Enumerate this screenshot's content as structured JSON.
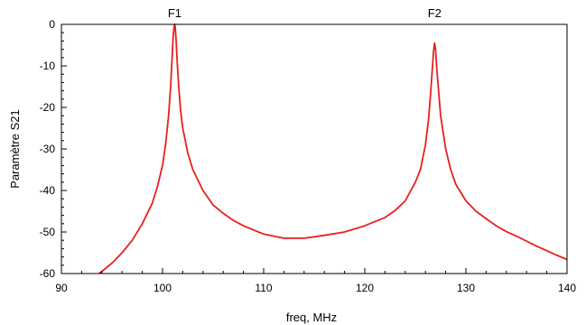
{
  "chart_data": {
    "type": "line",
    "title": "",
    "xlabel": "freq, MHz",
    "ylabel": "Paramètre S21",
    "xlim": [
      90,
      140
    ],
    "ylim": [
      -60,
      0
    ],
    "grid": false,
    "legend": "none",
    "x_ticks": [
      90,
      100,
      110,
      120,
      130,
      140
    ],
    "y_ticks": [
      0,
      -10,
      -20,
      -30,
      -40,
      -50,
      -60
    ],
    "markers": [
      {
        "label": "F1",
        "x": 101.2
      },
      {
        "label": "F2",
        "x": 126.9
      }
    ],
    "series": [
      {
        "color": "#e8201f",
        "x": [
          93.7,
          94,
          95,
          96,
          97,
          98,
          99,
          99.5,
          100,
          100.3,
          100.6,
          100.8,
          100.95,
          101.05,
          101.15,
          101.2,
          101.25,
          101.35,
          101.45,
          101.6,
          101.8,
          102,
          102.5,
          103,
          104,
          105,
          106,
          107,
          108,
          110,
          112,
          114,
          116,
          118,
          120,
          122,
          123,
          124,
          125,
          125.5,
          126,
          126.3,
          126.5,
          126.7,
          126.8,
          126.9,
          127,
          127.1,
          127.3,
          127.5,
          128,
          128.5,
          129,
          130,
          131,
          132,
          133,
          134,
          135,
          136,
          137,
          138,
          139,
          140
        ],
        "y": [
          -60,
          -59.5,
          -57.5,
          -55,
          -52,
          -48,
          -43,
          -39,
          -34,
          -29,
          -22,
          -15,
          -8,
          -3,
          -0.5,
          0,
          -0.5,
          -4,
          -9,
          -15,
          -21,
          -25,
          -31,
          -35,
          -40,
          -43.5,
          -45.5,
          -47.2,
          -48.5,
          -50.5,
          -51.5,
          -51.5,
          -50.8,
          -50,
          -48.5,
          -46.5,
          -44.8,
          -42.5,
          -38,
          -35,
          -29,
          -23,
          -17,
          -10,
          -6.5,
          -4.5,
          -6,
          -10,
          -16,
          -22,
          -30,
          -35,
          -38.5,
          -42.5,
          -45,
          -46.8,
          -48.5,
          -49.9,
          -51,
          -52.2,
          -53.4,
          -54.5,
          -55.6,
          -56.6
        ]
      }
    ]
  }
}
